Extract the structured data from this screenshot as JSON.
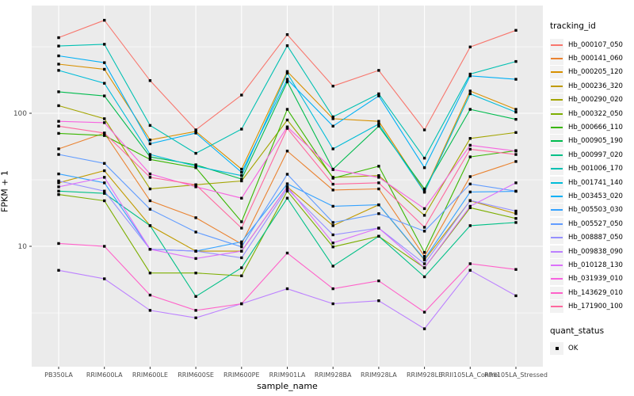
{
  "chart_data": {
    "type": "line",
    "xlabel": "sample_name",
    "ylabel": "FPKM + 1",
    "y_scale": "log10",
    "y_ticks": [
      {
        "value": 10,
        "label": "10"
      },
      {
        "value": 100,
        "label": "100"
      }
    ],
    "y_minor_ticks": [
      3.16,
      31.6,
      316
    ],
    "ylim": [
      1.25,
      640
    ],
    "grid": "on",
    "legend_position": "right",
    "legend_title": "tracking_id",
    "legend2_title": "quant_status",
    "quant_status_label": "OK",
    "marker": "black-square",
    "panel_color": "#EBEBEB",
    "grid_color": "#FFFFFF",
    "tick_text_color": "#4D4D4D",
    "categories": [
      "PB350LA",
      "RRIM600LA",
      "RRIM600LE",
      "RRIM600SE",
      "RRIM600PE",
      "RRIM901LA",
      "RRIM928BA",
      "RRIM928LA",
      "RRIM928LE",
      "RRII105LA_Control",
      "RRII105LA_Stressed"
    ],
    "series": [
      {
        "name": "Hb_000107_050",
        "color": "#F8766D",
        "values": [
          370,
          500,
          176,
          75,
          137,
          390,
          160,
          210,
          75,
          315,
          420
        ]
      },
      {
        "name": "Hb_000141_060",
        "color": "#EA8331",
        "values": [
          54,
          71,
          22,
          16.4,
          10.4,
          52,
          26.5,
          27,
          8.4,
          33.4,
          43.4
        ]
      },
      {
        "name": "Hb_000205_120",
        "color": "#D89000",
        "values": [
          234,
          214,
          63,
          73,
          38,
          206,
          91,
          87,
          26,
          147,
          107
        ]
      },
      {
        "name": "Hb_000236_320",
        "color": "#C09B00",
        "values": [
          30,
          37,
          14.3,
          9.2,
          9.2,
          28,
          14.3,
          20.5,
          7.9,
          22,
          17.6
        ]
      },
      {
        "name": "Hb_000290_020",
        "color": "#A3A500",
        "values": [
          114,
          91,
          27,
          29,
          31,
          89,
          33,
          34,
          17.1,
          64.7,
          71.7
        ]
      },
      {
        "name": "Hb_000322_050",
        "color": "#7CAE00",
        "values": [
          24.5,
          22,
          6.3,
          6.3,
          6.0,
          26,
          9.9,
          11.9,
          6.9,
          19.5,
          16.2
        ]
      },
      {
        "name": "Hb_000666_110",
        "color": "#39B600",
        "values": [
          70.6,
          68,
          45,
          39,
          15.3,
          107,
          32.5,
          40,
          9.0,
          47,
          52.4
        ]
      },
      {
        "name": "Hb_000905_190",
        "color": "#00BB4E",
        "values": [
          145,
          135,
          47,
          41,
          32,
          172,
          38,
          80,
          27,
          107,
          90
        ]
      },
      {
        "name": "Hb_000997_020",
        "color": "#00C087",
        "values": [
          26,
          25,
          14.3,
          4.2,
          6.9,
          23,
          7.1,
          11.9,
          5.9,
          14.3,
          15.1
        ]
      },
      {
        "name": "Hb_001006_170",
        "color": "#00C0B2",
        "values": [
          320,
          330,
          81,
          50,
          76,
          322,
          94,
          140,
          46,
          197,
          245
        ]
      },
      {
        "name": "Hb_001741_140",
        "color": "#00BCD8",
        "values": [
          210,
          168,
          49,
          40,
          34,
          200,
          54,
          83,
          25.5,
          140,
          102
        ]
      },
      {
        "name": "Hb_003453_020",
        "color": "#00B0F6",
        "values": [
          270,
          240,
          59,
          71,
          36,
          180,
          80,
          135,
          39,
          191,
          180
        ]
      },
      {
        "name": "Hb_005503_030",
        "color": "#35A2FF",
        "values": [
          35,
          30,
          9.5,
          9.2,
          10.8,
          29.5,
          20,
          20.5,
          8.0,
          25.6,
          25.9
        ]
      },
      {
        "name": "Hb_005527_050",
        "color": "#619CFF",
        "values": [
          49,
          42,
          19,
          12.8,
          9.9,
          34.8,
          15.1,
          17.6,
          13,
          29.4,
          26
        ]
      },
      {
        "name": "Hb_008887_050",
        "color": "#9590FF",
        "values": [
          31,
          26,
          9.5,
          9.2,
          8.2,
          27,
          12.2,
          13.7,
          7.4,
          22.1,
          18.4
        ]
      },
      {
        "name": "Hb_009838_090",
        "color": "#BC81FF",
        "values": [
          6.6,
          5.7,
          3.3,
          2.9,
          3.7,
          4.8,
          3.7,
          3.9,
          2.4,
          6.6,
          4.25
        ]
      },
      {
        "name": "Hb_010128_130",
        "color": "#DC71FA",
        "values": [
          28,
          33,
          9.5,
          8.1,
          9.2,
          28,
          10.6,
          13.7,
          6.9,
          20,
          30
        ]
      },
      {
        "name": "Hb_031939_010",
        "color": "#F763E0",
        "values": [
          87,
          85,
          35,
          28,
          23,
          79,
          37.7,
          33,
          19.2,
          57.5,
          52
        ]
      },
      {
        "name": "Hb_143629_010",
        "color": "#FF61C9",
        "values": [
          10.5,
          10,
          4.3,
          3.3,
          3.7,
          8.9,
          4.8,
          5.5,
          3.2,
          7.4,
          6.7
        ]
      },
      {
        "name": "Hb_171900_100",
        "color": "#FF689E",
        "values": [
          80,
          71,
          33,
          29,
          13.7,
          77,
          29.3,
          30,
          13.9,
          53.7,
          49
        ]
      }
    ]
  }
}
